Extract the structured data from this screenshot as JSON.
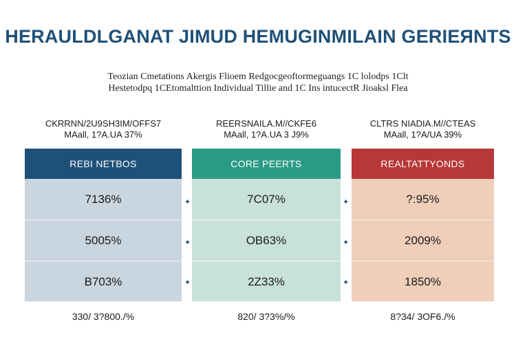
{
  "title": "HERAULDLGANAT JIMUD HEMUGINMILAIN GERIEЯNTS",
  "subtitle": {
    "line1": "Teozian Cmetations Akergis Flioem Redgocgeoftormeguangs 1C lolodps 1Clt",
    "line2": "Hestetodpq 1CEtomalttion Individual Tillie and 1C Ins intucectR Jioaksl Flea"
  },
  "columns": [
    {
      "header_line1": "CKRRNN/2U9SH3IM/OFFS7",
      "header_line2": "MAall, 1?A.UA 37%",
      "band_label": "REBI NETBOS",
      "rows": [
        "7136%",
        "5005%",
        "B703%"
      ],
      "footer": "330/ 3?800./%",
      "band_color": "#1f5078",
      "body_color": "#c9d6e0"
    },
    {
      "header_line1": "REERSNAILA.M//CKFE6",
      "header_line2": "MAall, 1?A.UA 3 J9%",
      "band_label": "CORE PEERTS",
      "rows": [
        "7C07%",
        "OB63%",
        "2Z33%"
      ],
      "footer": "820/ 3?3%/%",
      "band_color": "#2a9a86",
      "body_color": "#c8e2da"
    },
    {
      "header_line1": "CLTRS NIADIA.M//CTEAS",
      "header_line2": "MAall, 1?A/UA 39%",
      "band_label": "REALTATTYONDS",
      "rows": [
        "?:95%",
        "2009%",
        "1850%"
      ],
      "footer": "8?34/ 3OF6./%",
      "band_color": "#b73836",
      "body_color": "#efcfb9"
    }
  ],
  "separator_glyph": "✦"
}
